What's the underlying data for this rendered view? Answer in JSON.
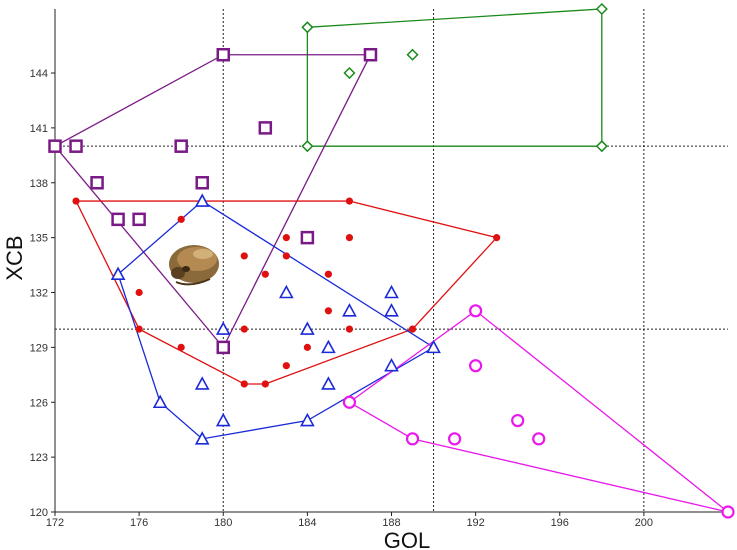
{
  "chart_data": {
    "type": "scatter",
    "title": "",
    "xlabel": "GOL",
    "ylabel": "XCB",
    "xlim": [
      172,
      204
    ],
    "ylim": [
      120,
      147.5
    ],
    "xticks": [
      172,
      176,
      180,
      184,
      188,
      192,
      196,
      200
    ],
    "yticks": [
      120,
      123,
      126,
      129,
      132,
      135,
      138,
      141,
      144
    ],
    "xtick_labels": [
      "172",
      "176",
      "180",
      "184",
      "188",
      "192",
      "196",
      "200"
    ],
    "ytick_labels": [
      "120",
      "123",
      "126",
      "129",
      "132",
      "135",
      "138",
      "141",
      "144"
    ],
    "reference_lines": {
      "vertical": [
        180,
        190,
        200
      ],
      "horizontal": [
        140,
        130
      ]
    },
    "inset_image": "skull",
    "series": [
      {
        "name": "green-diamonds",
        "marker": "diamond",
        "color": "#1a8a1a",
        "points": [
          [
            184,
            146.5
          ],
          [
            184,
            140
          ],
          [
            186,
            144
          ],
          [
            189,
            145
          ],
          [
            198,
            140
          ],
          [
            198,
            147.5
          ]
        ],
        "hull": [
          [
            184,
            146.5
          ],
          [
            198,
            147.5
          ],
          [
            198,
            140
          ],
          [
            184,
            140
          ]
        ]
      },
      {
        "name": "purple-squares",
        "marker": "square",
        "color": "#7a1a86",
        "points": [
          [
            172,
            140
          ],
          [
            173,
            140
          ],
          [
            174,
            138
          ],
          [
            175,
            136
          ],
          [
            176,
            136
          ],
          [
            178,
            140
          ],
          [
            179,
            138
          ],
          [
            180,
            145
          ],
          [
            180,
            129
          ],
          [
            182,
            141
          ],
          [
            184,
            135
          ],
          [
            187,
            145
          ]
        ],
        "hull": [
          [
            172,
            140
          ],
          [
            180,
            145
          ],
          [
            187,
            145
          ],
          [
            180,
            129
          ],
          [
            172,
            140
          ]
        ]
      },
      {
        "name": "red-dots",
        "marker": "dot",
        "color": "#e01010",
        "points": [
          [
            173,
            137
          ],
          [
            176,
            132
          ],
          [
            176,
            130
          ],
          [
            178,
            129
          ],
          [
            178,
            136
          ],
          [
            181,
            134
          ],
          [
            181,
            130
          ],
          [
            181,
            127
          ],
          [
            182,
            127
          ],
          [
            182,
            133
          ],
          [
            183,
            134
          ],
          [
            183,
            135
          ],
          [
            183,
            128
          ],
          [
            184,
            129
          ],
          [
            185,
            133
          ],
          [
            185,
            131
          ],
          [
            186,
            135
          ],
          [
            186,
            131
          ],
          [
            186,
            130
          ],
          [
            186,
            137
          ],
          [
            189,
            130
          ],
          [
            193,
            135
          ]
        ],
        "hull": [
          [
            173,
            137
          ],
          [
            186,
            137
          ],
          [
            193,
            135
          ],
          [
            189,
            130
          ],
          [
            182,
            127
          ],
          [
            181,
            127
          ],
          [
            176,
            130
          ],
          [
            173,
            137
          ]
        ]
      },
      {
        "name": "blue-triangles",
        "marker": "triangle",
        "color": "#1a2ad8",
        "points": [
          [
            175,
            133
          ],
          [
            177,
            126
          ],
          [
            179,
            137
          ],
          [
            179,
            127
          ],
          [
            179,
            124
          ],
          [
            180,
            130
          ],
          [
            180,
            125
          ],
          [
            183,
            132
          ],
          [
            184,
            130
          ],
          [
            184,
            125
          ],
          [
            185,
            129
          ],
          [
            185,
            127
          ],
          [
            186,
            131
          ],
          [
            188,
            132
          ],
          [
            188,
            131
          ],
          [
            188,
            128
          ],
          [
            190,
            129
          ]
        ],
        "hull": [
          [
            175,
            133
          ],
          [
            179,
            137
          ],
          [
            190,
            129
          ],
          [
            184,
            125
          ],
          [
            179,
            124
          ],
          [
            177,
            126
          ],
          [
            175,
            133
          ]
        ]
      },
      {
        "name": "magenta-circles",
        "marker": "circle",
        "color": "#ea18ea",
        "points": [
          [
            186,
            126
          ],
          [
            189,
            124
          ],
          [
            191,
            124
          ],
          [
            192,
            131
          ],
          [
            192,
            128
          ],
          [
            194,
            125
          ],
          [
            195,
            124
          ],
          [
            204,
            120
          ]
        ],
        "hull": [
          [
            186,
            126
          ],
          [
            192,
            131
          ],
          [
            204,
            120
          ],
          [
            189,
            124
          ],
          [
            186,
            126
          ]
        ]
      }
    ]
  }
}
